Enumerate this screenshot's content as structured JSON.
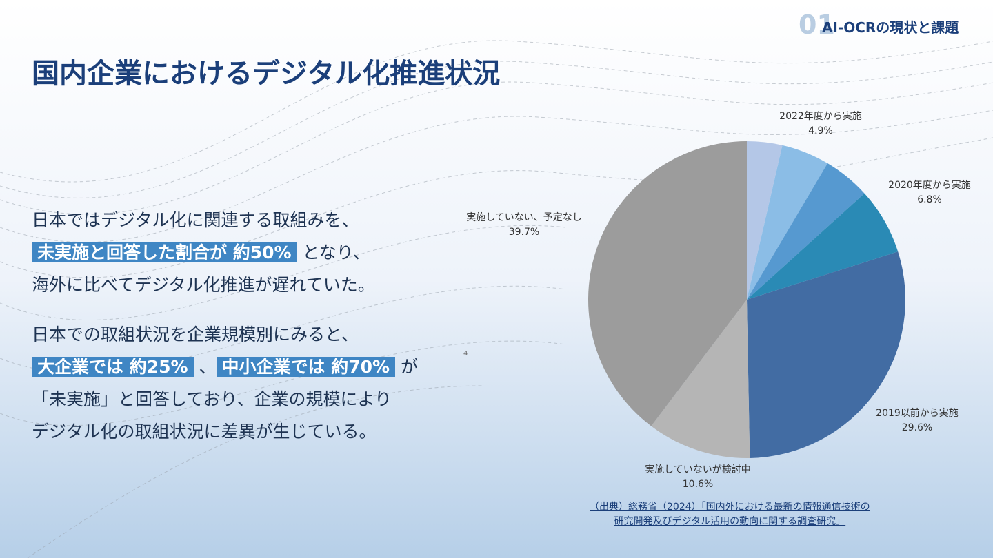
{
  "header": {
    "number": "01",
    "section": "AI-OCRの現状と課題"
  },
  "title": "国内企業におけるデジタル化推進状況",
  "text": {
    "p1": [
      "日本ではデジタル化に関連する取組みを、",
      "未実施と回答した割合が 約50%",
      "となり、",
      "海外に比べてデジタル化推進が遅れていた。"
    ],
    "p2": [
      "日本での取組状況を企業規模別にみると、",
      "大企業では 約25%",
      "、",
      "中小企業では 約70%",
      "が",
      "「未実施」と回答しており、企業の規模により",
      "デジタル化の取組状況に差異が生じている。"
    ]
  },
  "page_number": "4",
  "source": [
    "（出典）総務省（2024）「国内外における最新の情報通信技術の",
    "研究開発及びデジタル活用の動向に関する調査研究」"
  ],
  "chart_data": {
    "type": "pie",
    "categories": [
      null,
      "2022年度から実施",
      null,
      "2020年度から実施",
      "2019以前から実施",
      "実施していないが検討中",
      "実施していない、予定なし"
    ],
    "values": [
      3.6,
      4.9,
      4.8,
      6.8,
      29.6,
      10.6,
      39.7
    ],
    "value_labels": [
      null,
      "4.9%",
      null,
      "6.8%",
      "29.6%",
      "10.6%",
      "39.7%"
    ],
    "colors": [
      "#b4c7e7",
      "#8bbde6",
      "#5699d0",
      "#2a8ab5",
      "#426ca3",
      "#b5b5b5",
      "#9c9c9c"
    ]
  }
}
